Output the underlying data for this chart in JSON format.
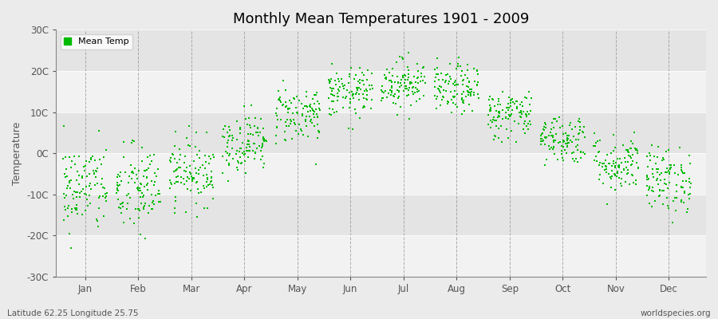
{
  "title": "Monthly Mean Temperatures 1901 - 2009",
  "ylabel": "Temperature",
  "subtitle_left": "Latitude 62.25 Longitude 25.75",
  "subtitle_right": "worldspecies.org",
  "ylim": [
    -30,
    30
  ],
  "yticks": [
    -30,
    -20,
    -10,
    0,
    10,
    20,
    30
  ],
  "ytick_labels": [
    "-30C",
    "-20C",
    "-10C",
    "0C",
    "10C",
    "20C",
    "30C"
  ],
  "months": [
    "Jan",
    "Feb",
    "Mar",
    "Apr",
    "May",
    "Jun",
    "Jul",
    "Aug",
    "Sep",
    "Oct",
    "Nov",
    "Dec"
  ],
  "month_means": [
    -8.5,
    -9.0,
    -4.5,
    2.5,
    9.5,
    14.5,
    17.0,
    15.5,
    9.5,
    3.5,
    -2.5,
    -6.5
  ],
  "month_stds": [
    5.5,
    5.5,
    4.0,
    3.5,
    3.5,
    3.0,
    3.0,
    3.0,
    3.0,
    3.0,
    3.5,
    4.0
  ],
  "n_years": 109,
  "dot_color": "#00bb00",
  "dot_size": 3,
  "bg_color": "#ebebeb",
  "stripe_light": "#f2f2f2",
  "stripe_dark": "#e4e4e4",
  "vline_color": "#999999",
  "title_fontsize": 13,
  "axis_fontsize": 9,
  "tick_fontsize": 8.5,
  "subtitle_fontsize": 7.5,
  "legend_fontsize": 8
}
